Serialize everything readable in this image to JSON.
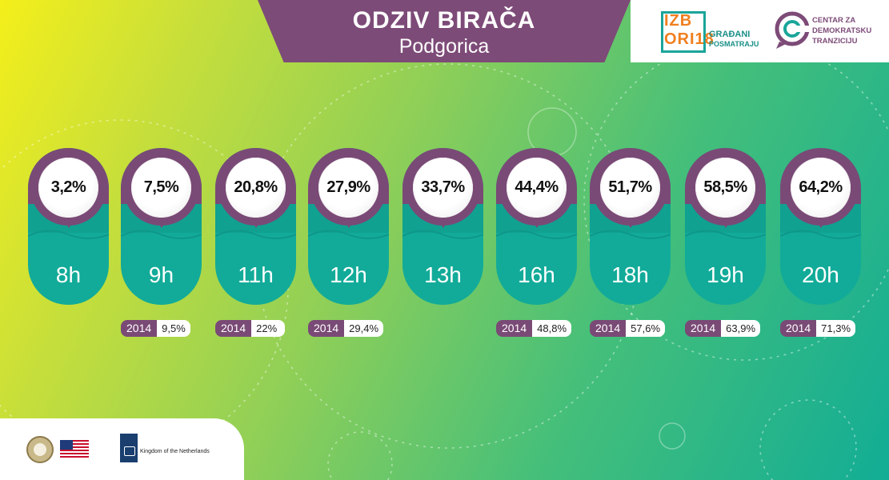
{
  "header": {
    "title": "ODZIV BIRAČA",
    "subtitle": "Podgorica"
  },
  "logos": {
    "izbori": {
      "line1": "IZB",
      "line2": "ORI18",
      "sub1": "GRAĐANI",
      "sub2": "POSMATRAJU"
    },
    "cdt": {
      "line1": "CENTAR ZA",
      "line2": "DEMOKRATSKU",
      "line3": "TRANZICIJU"
    },
    "netherlands": "Kingdom of the Netherlands"
  },
  "turnout": [
    {
      "hour": "8h",
      "percent": "3,2%",
      "prev_year": "",
      "prev_value": ""
    },
    {
      "hour": "9h",
      "percent": "7,5%",
      "prev_year": "2014",
      "prev_value": "9,5%"
    },
    {
      "hour": "11h",
      "percent": "20,8%",
      "prev_year": "2014",
      "prev_value": "22%"
    },
    {
      "hour": "12h",
      "percent": "27,9%",
      "prev_year": "2014",
      "prev_value": "29,4%"
    },
    {
      "hour": "13h",
      "percent": "33,7%",
      "prev_year": "",
      "prev_value": ""
    },
    {
      "hour": "16h",
      "percent": "44,4%",
      "prev_year": "2014",
      "prev_value": "48,8%"
    },
    {
      "hour": "18h",
      "percent": "51,7%",
      "prev_year": "2014",
      "prev_value": "57,6%"
    },
    {
      "hour": "19h",
      "percent": "58,5%",
      "prev_year": "2014",
      "prev_value": "63,9%"
    },
    {
      "hour": "20h",
      "percent": "64,2%",
      "prev_year": "2014",
      "prev_value": "71,3%"
    }
  ],
  "colors": {
    "purple": "#7a4a76",
    "teal": "#12ab99",
    "orange": "#f07f1e"
  }
}
